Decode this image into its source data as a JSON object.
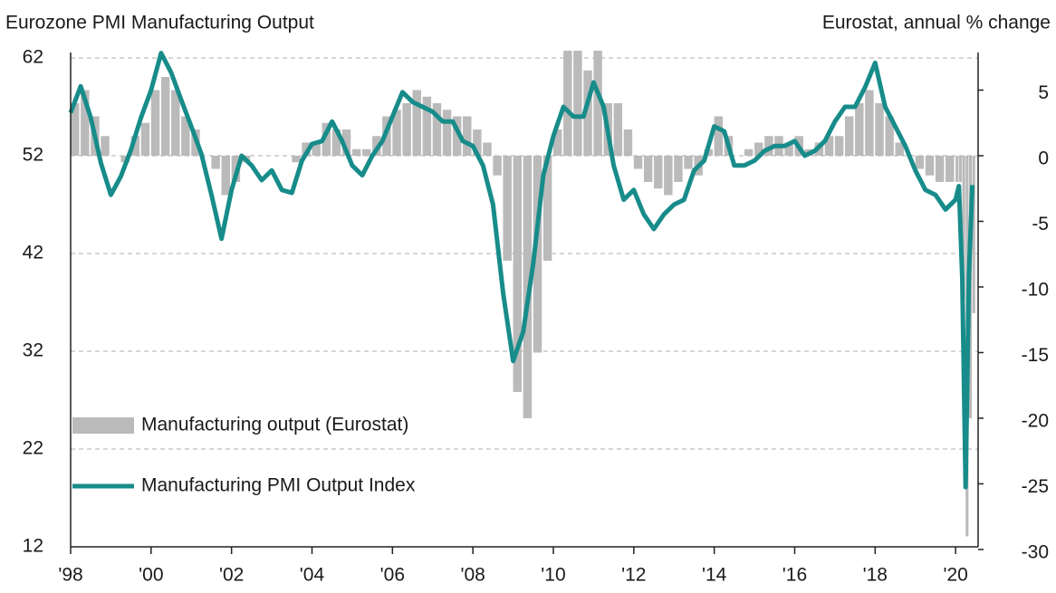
{
  "chart_data": {
    "type": "combo",
    "title": "Eurozone PMI Manufacturing Output",
    "y2label": "Eurostat, annual % change",
    "x": [
      1998,
      1998.25,
      1998.5,
      1998.75,
      1999,
      1999.25,
      1999.5,
      1999.75,
      2000,
      2000.25,
      2000.5,
      2000.75,
      2001,
      2001.25,
      2001.5,
      2001.75,
      2002,
      2002.25,
      2002.5,
      2002.75,
      2003,
      2003.25,
      2003.5,
      2003.75,
      2004,
      2004.25,
      2004.5,
      2004.75,
      2005,
      2005.25,
      2005.5,
      2005.75,
      2006,
      2006.25,
      2006.5,
      2006.75,
      2007,
      2007.25,
      2007.5,
      2007.75,
      2008,
      2008.25,
      2008.5,
      2008.75,
      2009,
      2009.25,
      2009.5,
      2009.75,
      2010,
      2010.25,
      2010.5,
      2010.75,
      2011,
      2011.25,
      2011.5,
      2011.75,
      2012,
      2012.25,
      2012.5,
      2012.75,
      2013,
      2013.25,
      2013.5,
      2013.75,
      2014,
      2014.25,
      2014.5,
      2014.75,
      2015,
      2015.25,
      2015.5,
      2015.75,
      2016,
      2016.25,
      2016.5,
      2016.75,
      2017,
      2017.25,
      2017.5,
      2017.75,
      2018,
      2018.25,
      2018.5,
      2018.75,
      2019,
      2019.25,
      2019.5,
      2019.75,
      2020,
      2020.083,
      2020.167,
      2020.25,
      2020.333,
      2020.417
    ],
    "series": [
      {
        "name": "Manufacturing output (Eurostat)",
        "type": "bar",
        "axis": "y2",
        "color": "#bababa",
        "values": [
          4,
          5,
          3,
          1.5,
          0,
          -0.5,
          1.5,
          2.5,
          5,
          6,
          5,
          3,
          2,
          0,
          -1,
          -3,
          -2,
          -0.5,
          0,
          0,
          0,
          0,
          -0.5,
          1,
          1,
          2.5,
          2,
          2,
          0.5,
          0.5,
          1.5,
          3,
          3.5,
          4,
          5,
          4.5,
          4,
          3.5,
          3,
          3,
          2,
          1,
          -1.5,
          -8,
          -18,
          -20,
          -15,
          -8,
          2,
          8,
          8,
          6.5,
          8,
          4,
          4,
          2,
          -1,
          -2,
          -2.5,
          -3,
          -2,
          -1,
          -1.5,
          0.5,
          3,
          1.5,
          0,
          0.5,
          1,
          1.5,
          1.5,
          1,
          1.5,
          0.5,
          1,
          1.5,
          1.5,
          3,
          4,
          5,
          4,
          3,
          1,
          0,
          -1,
          -1.5,
          -2,
          -2,
          -2,
          -2,
          -11,
          -29,
          -20,
          -12
        ]
      },
      {
        "name": "Manufacturing PMI Output Index",
        "type": "line",
        "color": "#178c8a",
        "values": [
          56.4,
          59.1,
          55.9,
          51.3,
          48,
          49.9,
          52.6,
          55.9,
          58.7,
          62.5,
          60.5,
          57.7,
          55,
          52.2,
          48,
          43.5,
          48.5,
          52,
          51,
          49.5,
          50.5,
          48.5,
          48.2,
          51.5,
          53.2,
          53.5,
          55.5,
          53.5,
          51,
          50,
          52,
          53.5,
          56,
          58.5,
          57.5,
          57,
          56.5,
          55.5,
          55.5,
          53.5,
          53,
          51,
          47,
          38,
          31,
          34,
          41,
          50,
          54,
          57,
          56,
          56,
          59.5,
          57,
          51,
          47.5,
          48.5,
          46,
          44.5,
          46,
          47,
          47.5,
          50.5,
          51.5,
          55,
          54.5,
          51,
          51,
          51.5,
          52.5,
          53,
          53,
          53.5,
          52,
          52.5,
          53.5,
          55.5,
          57,
          57,
          59,
          61.5,
          57,
          55,
          53,
          50.5,
          48.5,
          48,
          46.5,
          47.5,
          48.9,
          39.5,
          18.1,
          39.9,
          49
        ]
      }
    ],
    "xlim": [
      1998,
      2020.56
    ],
    "xticks": [
      {
        "value": 1998,
        "label": "'98"
      },
      {
        "value": 2000,
        "label": "'00"
      },
      {
        "value": 2002,
        "label": "'02"
      },
      {
        "value": 2004,
        "label": "'04"
      },
      {
        "value": 2006,
        "label": "'06"
      },
      {
        "value": 2008,
        "label": "'08"
      },
      {
        "value": 2010,
        "label": "'10"
      },
      {
        "value": 2012,
        "label": "'12"
      },
      {
        "value": 2014,
        "label": "'14"
      },
      {
        "value": 2016,
        "label": "'16"
      },
      {
        "value": 2018,
        "label": "'18"
      },
      {
        "value": 2020,
        "label": "'20"
      }
    ],
    "ylim": [
      12,
      62
    ],
    "yticks": [
      12,
      22,
      32,
      42,
      52,
      62
    ],
    "y2lim": [
      -29.8,
      7.45
    ],
    "y2ticks": [
      5,
      0,
      -5,
      -10,
      -15,
      -20,
      -25,
      -30
    ],
    "grid": true,
    "legend": "lower-left"
  }
}
